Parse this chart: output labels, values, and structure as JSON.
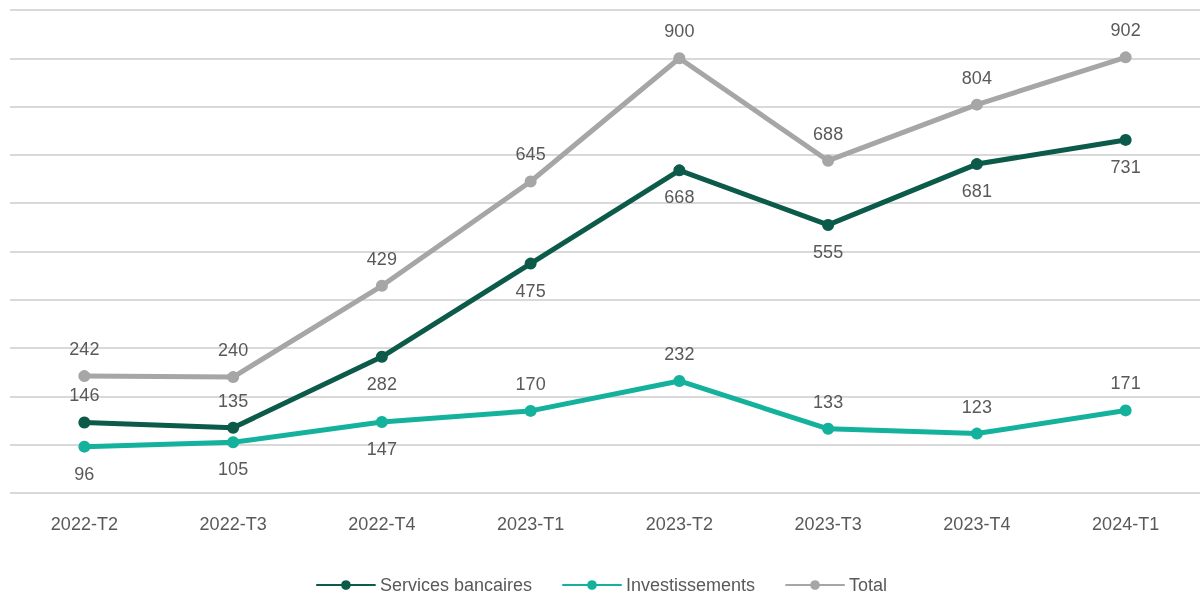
{
  "chart_data": {
    "type": "line",
    "categories": [
      "2022-T2",
      "2022-T3",
      "2022-T4",
      "2023-T1",
      "2023-T2",
      "2023-T3",
      "2023-T4",
      "2024-T1"
    ],
    "series": [
      {
        "name": "Services bancaires",
        "color": "#0b5a4a",
        "values": [
          146,
          135,
          282,
          475,
          668,
          555,
          681,
          731
        ]
      },
      {
        "name": "Investissements",
        "color": "#14b29c",
        "values": [
          96,
          105,
          147,
          170,
          232,
          133,
          123,
          171
        ]
      },
      {
        "name": "Total",
        "color": "#a6a6a6",
        "values": [
          242,
          240,
          429,
          645,
          900,
          688,
          804,
          902
        ]
      }
    ],
    "ylim": [
      0,
      1000
    ],
    "yticks": [
      {
        "value": 0,
        "label": null
      },
      {
        "value": 100,
        "label": null
      },
      {
        "value": 200,
        "label": null
      },
      {
        "value": 300,
        "label": null
      },
      {
        "value": 400,
        "label": null
      },
      {
        "value": 500,
        "label": null
      },
      {
        "value": 600,
        "label": null
      },
      {
        "value": 700,
        "label": null
      },
      {
        "value": 800,
        "label": null
      },
      {
        "value": 900,
        "label": null
      },
      {
        "value": 1000,
        "label": null
      }
    ],
    "tick_labels": "x",
    "grid": "y",
    "legend": "bottom",
    "data_labels": true,
    "marker": "circle",
    "line_style": "solid"
  }
}
